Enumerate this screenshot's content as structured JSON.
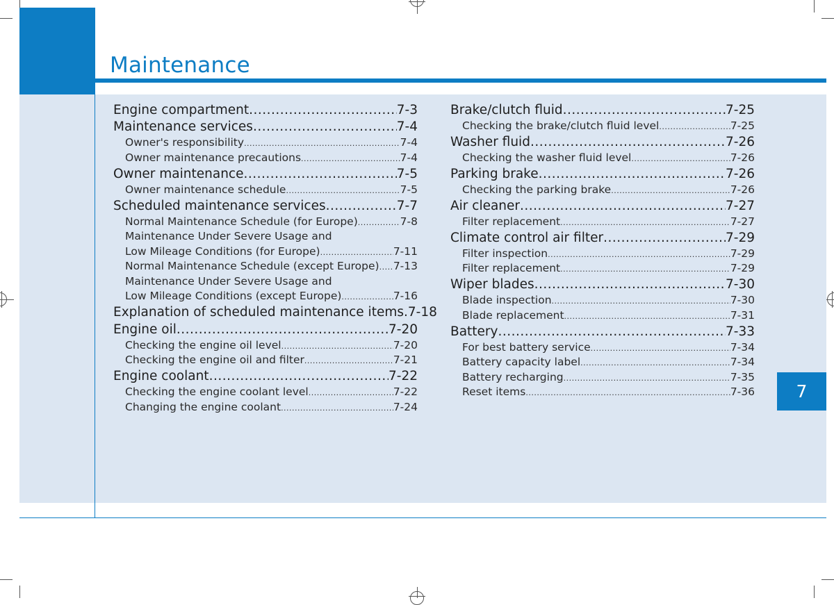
{
  "header": {
    "title": "Maintenance"
  },
  "chapter_tab": "7",
  "toc": {
    "left": [
      {
        "kind": "main",
        "label": "Engine compartment ",
        "page": "7-3"
      },
      {
        "kind": "main",
        "label": "Maintenance services ",
        "page": "7-4"
      },
      {
        "kind": "sub",
        "label": "Owner's responsibility",
        "page": "7-4"
      },
      {
        "kind": "sub",
        "label": "Owner maintenance precautions ",
        "page": "7-4"
      },
      {
        "kind": "main",
        "label": "Owner maintenance",
        "page": "7-5"
      },
      {
        "kind": "sub",
        "label": "Owner maintenance schedule",
        "page": "7-5"
      },
      {
        "kind": "main",
        "label": "Scheduled maintenance services",
        "page": "7-7"
      },
      {
        "kind": "sub",
        "label": "Normal Maintenance Schedule (for Europe) ",
        "page": "7-8"
      },
      {
        "kind": "sub-plain",
        "label": "Maintenance Under Severe Usage and"
      },
      {
        "kind": "sub",
        "label": "Low Mileage Conditions (for Europe)",
        "page": "7-11"
      },
      {
        "kind": "sub",
        "label": "Normal Maintenance Schedule (except Europe) ",
        "page": "7-13"
      },
      {
        "kind": "sub-plain",
        "label": "Maintenance Under Severe Usage and"
      },
      {
        "kind": "sub",
        "label": "Low Mileage Conditions (except Europe) ",
        "page": "7-16"
      },
      {
        "kind": "main",
        "label": "Explanation of scheduled maintenance items.",
        "page": "7-18"
      },
      {
        "kind": "main",
        "label": "Engine oil ",
        "page": "7-20"
      },
      {
        "kind": "sub",
        "label": "Checking the engine oil level ",
        "page": "7-20"
      },
      {
        "kind": "sub",
        "label": "Checking the engine oil and filter ",
        "page": "7-21"
      },
      {
        "kind": "main",
        "label": "Engine coolant",
        "page": "7-22"
      },
      {
        "kind": "sub",
        "label": "Checking the engine coolant level",
        "page": "7-22"
      },
      {
        "kind": "sub",
        "label": "Changing the engine coolant ",
        "page": "7-24"
      }
    ],
    "right": [
      {
        "kind": "main",
        "label": "Brake/clutch fluid",
        "page": "7-25"
      },
      {
        "kind": "sub",
        "label": "Checking the brake/clutch fluid level",
        "page": "7-25"
      },
      {
        "kind": "main",
        "label": "Washer fluid ",
        "page": "7-26"
      },
      {
        "kind": "sub",
        "label": "Checking the washer fluid level ",
        "page": "7-26"
      },
      {
        "kind": "main",
        "label": "Parking brake ",
        "page": "7-26"
      },
      {
        "kind": "sub",
        "label": "Checking the parking brake ",
        "page": "7-26"
      },
      {
        "kind": "main",
        "label": "Air cleaner ",
        "page": "7-27"
      },
      {
        "kind": "sub",
        "label": "Filter replacement",
        "page": "7-27"
      },
      {
        "kind": "main",
        "label": "Climate control air filter ",
        "page": "7-29"
      },
      {
        "kind": "sub",
        "label": "Filter inspection",
        "page": "7-29"
      },
      {
        "kind": "sub",
        "label": "Filter replacement",
        "page": "7-29"
      },
      {
        "kind": "main",
        "label": "Wiper blades",
        "page": "7-30"
      },
      {
        "kind": "sub",
        "label": "Blade inspection ",
        "page": "7-30"
      },
      {
        "kind": "sub",
        "label": "Blade replacement ",
        "page": "7-31"
      },
      {
        "kind": "main",
        "label": "Battery",
        "page": "7-33"
      },
      {
        "kind": "sub",
        "label": "For best battery service",
        "page": "7-34"
      },
      {
        "kind": "sub",
        "label": "Battery capacity label ",
        "page": "7-34"
      },
      {
        "kind": "sub",
        "label": "Battery recharging ",
        "page": "7-35"
      },
      {
        "kind": "sub",
        "label": "Reset items ",
        "page": "7-36"
      }
    ]
  }
}
